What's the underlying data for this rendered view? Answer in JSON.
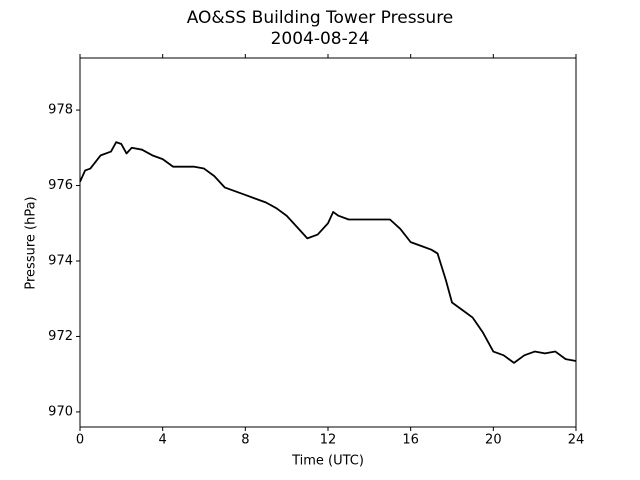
{
  "chart_data": {
    "type": "line",
    "title": "AO&SS Building Tower Pressure",
    "subtitle": "2004-08-24",
    "x_label": "Time (UTC)",
    "y_label": "Pressure (hPa)",
    "x": [
      0,
      0.25,
      0.5,
      1,
      1.5,
      1.75,
      2,
      2.25,
      2.5,
      3,
      3.5,
      4,
      4.5,
      5,
      5.5,
      6,
      6.5,
      7,
      7.5,
      8,
      8.5,
      9,
      9.5,
      10,
      10.5,
      11,
      11.5,
      12,
      12.25,
      12.5,
      13,
      14,
      15,
      15.5,
      16,
      16.5,
      17,
      17.3,
      17.7,
      18,
      18.5,
      19,
      19.5,
      20,
      20.5,
      21,
      21.5,
      22,
      22.5,
      23,
      23.5,
      24
    ],
    "series": [
      {
        "name": "Pressure",
        "color": "#000000",
        "values": [
          976.1,
          976.4,
          976.45,
          976.8,
          976.9,
          977.15,
          977.1,
          976.85,
          977.0,
          976.95,
          976.8,
          976.7,
          976.5,
          976.5,
          976.5,
          976.45,
          976.25,
          975.95,
          975.85,
          975.75,
          975.65,
          975.55,
          975.4,
          975.2,
          974.9,
          974.6,
          974.7,
          975.0,
          975.3,
          975.2,
          975.1,
          975.1,
          975.1,
          974.85,
          974.5,
          974.4,
          974.3,
          974.2,
          973.5,
          972.9,
          972.7,
          972.5,
          972.1,
          971.6,
          971.5,
          971.3,
          971.5,
          971.6,
          971.55,
          971.6,
          971.4,
          971.35
        ]
      }
    ],
    "xlim": [
      0,
      24
    ],
    "xticks": [
      0,
      4,
      8,
      12,
      16,
      20,
      24
    ],
    "ylim": [
      969.6,
      979.38
    ],
    "yticks": [
      970,
      972,
      974,
      976,
      978
    ]
  }
}
